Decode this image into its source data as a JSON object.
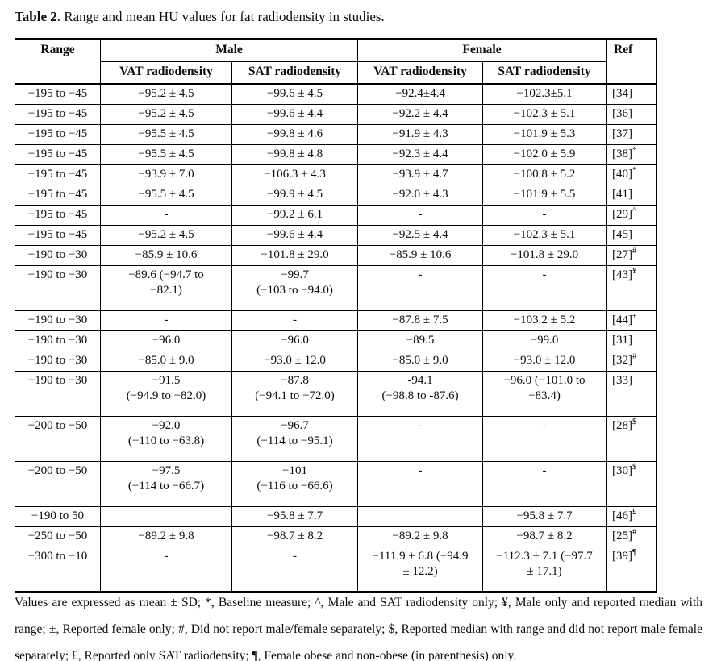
{
  "title": {
    "bold": "Table 2",
    "rest": ". Range and mean HU values for fat radiodensity in studies."
  },
  "table": {
    "columns": {
      "range": "Range",
      "male": "Male",
      "female": "Female",
      "ref": "Ref",
      "male_vat": "VAT radiodensity",
      "male_sat": "SAT radiodensity",
      "female_vat": "VAT radiodensity",
      "female_sat": "SAT radiodensity"
    },
    "rows": [
      {
        "range": "−195 to −45",
        "male_vat": "−95.2 ± 4.5",
        "male_sat": "−99.6 ± 4.5",
        "female_vat": "−92.4±4.4",
        "female_sat": "−102.3±5.1",
        "ref": "[34]",
        "ref_sup": ""
      },
      {
        "range": "−195 to −45",
        "male_vat": "−95.2 ± 4.5",
        "male_sat": "−99.6 ± 4.4",
        "female_vat": "−92.2 ± 4.4",
        "female_sat": "−102.3 ± 5.1",
        "ref": "[36]",
        "ref_sup": ""
      },
      {
        "range": "−195 to −45",
        "male_vat": "−95.5 ± 4.5",
        "male_sat": "−99.8 ± 4.6",
        "female_vat": "−91.9 ± 4.3",
        "female_sat": "−101.9 ± 5.3",
        "ref": "[37]",
        "ref_sup": ""
      },
      {
        "range": "−195 to −45",
        "male_vat": "−95.5 ± 4.5",
        "male_sat": "−99.8 ± 4.8",
        "female_vat": "−92.3 ± 4.4",
        "female_sat": "−102.0 ± 5.9",
        "ref": "[38]",
        "ref_sup": "*"
      },
      {
        "range": "−195 to −45",
        "male_vat": "−93.9 ± 7.0",
        "male_sat": "−106.3 ± 4.3",
        "female_vat": "−93.9 ± 4.7",
        "female_sat": "−100.8 ± 5.2",
        "ref": "[40]",
        "ref_sup": "*"
      },
      {
        "range": "−195 to −45",
        "male_vat": "−95.5 ± 4.5",
        "male_sat": "−99.9 ± 4.5",
        "female_vat": "−92.0 ± 4.3",
        "female_sat": "−101.9 ± 5.5",
        "ref": "[41]",
        "ref_sup": ""
      },
      {
        "range": "−195 to −45",
        "male_vat": "-",
        "male_sat": "−99.2 ± 6.1",
        "female_vat": "-",
        "female_sat": "-",
        "ref": "[29]",
        "ref_sup": "^"
      },
      {
        "range": "−195 to −45",
        "male_vat": "−95.2 ± 4.5",
        "male_sat": "−99.6 ± 4.4",
        "female_vat": "−92.5 ± 4.4",
        "female_sat": "−102.3 ± 5.1",
        "ref": "[45]",
        "ref_sup": ""
      },
      {
        "range": "−190 to −30",
        "male_vat": "−85.9 ± 10.6",
        "male_sat": "−101.8 ± 29.0",
        "female_vat": "−85.9 ± 10.6",
        "female_sat": "−101.8 ± 29.0",
        "ref": "[27]",
        "ref_sup": "#"
      },
      {
        "range": "−190 to −30",
        "male_vat": "−89.6 (−94.7 to\n−82.1)",
        "male_sat": "−99.7\n(−103 to −94.0)",
        "female_vat": "-",
        "female_sat": "-",
        "ref": "[43]",
        "ref_sup": "¥"
      },
      {
        "range": "−190 to −30",
        "male_vat": "-",
        "male_sat": "-",
        "female_vat": "−87.8 ± 7.5",
        "female_sat": "−103.2 ± 5.2",
        "ref": "[44]",
        "ref_sup": "±"
      },
      {
        "range": "−190 to −30",
        "male_vat": "−96.0",
        "male_sat": "−96.0",
        "female_vat": "−89.5",
        "female_sat": "−99.0",
        "ref": "[31]",
        "ref_sup": ""
      },
      {
        "range": "−190 to −30",
        "male_vat": "−85.0 ± 9.0",
        "male_sat": "−93.0 ± 12.0",
        "female_vat": "−85.0 ± 9.0",
        "female_sat": "−93.0 ± 12.0",
        "ref": "[32]",
        "ref_sup": "#"
      },
      {
        "range": "−190 to −30",
        "male_vat": "−91.5\n(−94.9 to −82.0)",
        "male_sat": "−87.8\n(−94.1 to −72.0)",
        "female_vat": "-94.1\n(−98.8 to -87.6)",
        "female_sat": "−96.0 (−101.0 to\n−83.4)",
        "ref": "[33]",
        "ref_sup": ""
      },
      {
        "range": "−200 to −50",
        "male_vat": "−92.0\n(−110 to −63.8)",
        "male_sat": "−96.7\n(−114 to −95.1)",
        "female_vat": "-",
        "female_sat": "-",
        "ref": "[28]",
        "ref_sup": "$"
      },
      {
        "range": "−200 to −50",
        "male_vat": "−97.5\n(−114 to −66.7)",
        "male_sat": "−101\n(−116 to −66.6)",
        "female_vat": "-",
        "female_sat": "-",
        "ref": "[30]",
        "ref_sup": "$"
      },
      {
        "range": "−190 to 50",
        "male_vat": "",
        "male_sat": "−95.8 ± 7.7",
        "female_vat": "",
        "female_sat": "−95.8 ± 7.7",
        "ref": "[46]",
        "ref_sup": "£"
      },
      {
        "range": "−250 to −50",
        "male_vat": "−89.2 ± 9.8",
        "male_sat": "−98.7 ± 8.2",
        "female_vat": "−89.2 ± 9.8",
        "female_sat": "−98.7 ± 8.2",
        "ref": "[25]",
        "ref_sup": "#"
      },
      {
        "range": "−300 to −10",
        "male_vat": "-",
        "male_sat": "-",
        "female_vat": "−111.9 ± 6.8 (−94.9\n± 12.2)",
        "female_sat": "−112.3 ± 7.1 (−97.7\n± 17.1)",
        "ref": "[39]",
        "ref_sup": "¶"
      }
    ]
  },
  "footnote": "Values are expressed as mean ± SD; *, Baseline measure; ^, Male and SAT radiodensity only; ¥, Male only and reported median with range; ±, Reported female only; #, Did not report male/female separately; $, Reported median with range and did not report male female separately; £, Reported only SAT radiodensity; ¶, Female obese and non-obese (in parenthesis) only."
}
